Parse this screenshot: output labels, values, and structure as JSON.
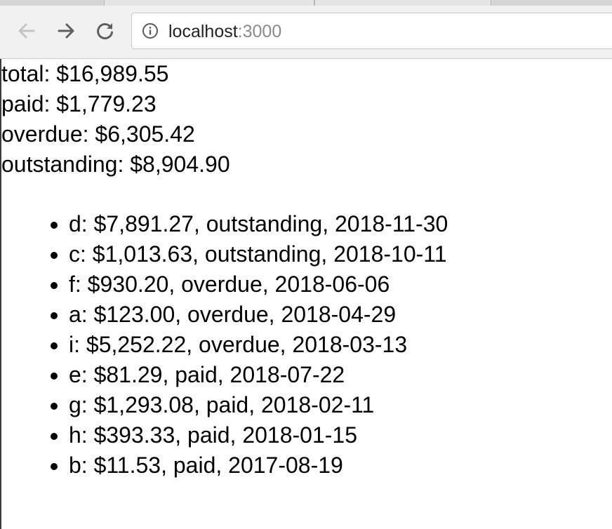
{
  "browser": {
    "url_host": "localhost",
    "url_port": ":3000"
  },
  "summary": {
    "total": "total: $16,989.55",
    "paid": "paid: $1,779.23",
    "overdue": "overdue: $6,305.42",
    "outstanding": "outstanding: $8,904.90"
  },
  "invoices": [
    "d: $7,891.27, outstanding, 2018-11-30",
    "c: $1,013.63, outstanding, 2018-10-11",
    "f: $930.20, overdue, 2018-06-06",
    "a: $123.00, overdue, 2018-04-29",
    "i: $5,252.22, overdue, 2018-03-13",
    "e: $81.29, paid, 2018-07-22",
    "g: $1,293.08, paid, 2018-02-11",
    "h: $393.33, paid, 2018-01-15",
    "b: $11.53, paid, 2017-08-19"
  ],
  "icons": {
    "back": "arrow-left-icon",
    "forward": "arrow-right-icon",
    "reload": "reload-icon",
    "info": "info-circle-icon"
  }
}
